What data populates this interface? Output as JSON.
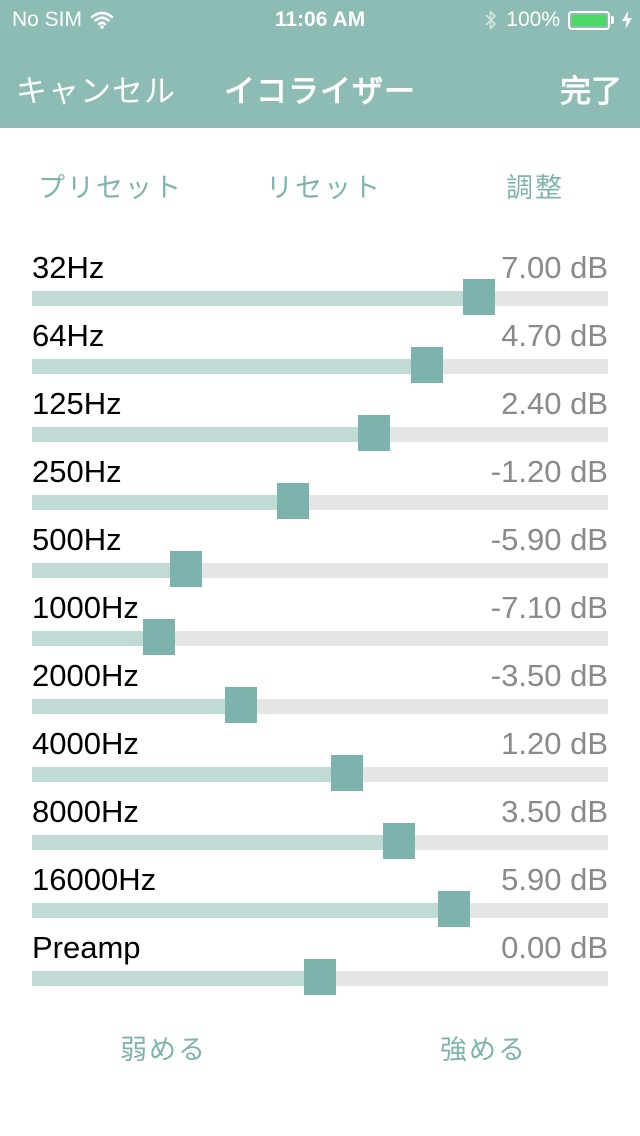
{
  "status_bar": {
    "carrier": "No SIM",
    "time": "11:06 AM",
    "battery_percent": "100%",
    "battery_level": 1.0,
    "battery_color": "#4cd964",
    "icons": [
      "wifi-icon",
      "bluetooth-icon",
      "battery-icon",
      "charging-bolt-icon"
    ]
  },
  "nav": {
    "cancel_label": "キャンセル",
    "title": "イコライザー",
    "done_label": "完了"
  },
  "segments": {
    "preset_label": "プリセット",
    "reset_label": "リセット",
    "adjust_label": "調整"
  },
  "slider_range_db": [
    -12,
    12
  ],
  "bands": [
    {
      "label": "32Hz",
      "value_text": "7.00 dB",
      "db": 7.0
    },
    {
      "label": "64Hz",
      "value_text": "4.70 dB",
      "db": 4.7
    },
    {
      "label": "125Hz",
      "value_text": "2.40 dB",
      "db": 2.4
    },
    {
      "label": "250Hz",
      "value_text": "-1.20 dB",
      "db": -1.2
    },
    {
      "label": "500Hz",
      "value_text": "-5.90 dB",
      "db": -5.9
    },
    {
      "label": "1000Hz",
      "value_text": "-7.10 dB",
      "db": -7.1
    },
    {
      "label": "2000Hz",
      "value_text": "-3.50 dB",
      "db": -3.5
    },
    {
      "label": "4000Hz",
      "value_text": "1.20 dB",
      "db": 1.2
    },
    {
      "label": "8000Hz",
      "value_text": "3.50 dB",
      "db": 3.5
    },
    {
      "label": "16000Hz",
      "value_text": "5.90 dB",
      "db": 5.9
    },
    {
      "label": "Preamp",
      "value_text": "0.00 dB",
      "db": 0.0
    }
  ],
  "bottom": {
    "weaken_label": "弱める",
    "strengthen_label": "強める"
  },
  "colors": {
    "accent": "#8cbcb4",
    "thumb": "#7db3ad",
    "track_fill": "#c0dad6",
    "track": "#e5e5e5",
    "link_text": "#7fb4ad"
  }
}
